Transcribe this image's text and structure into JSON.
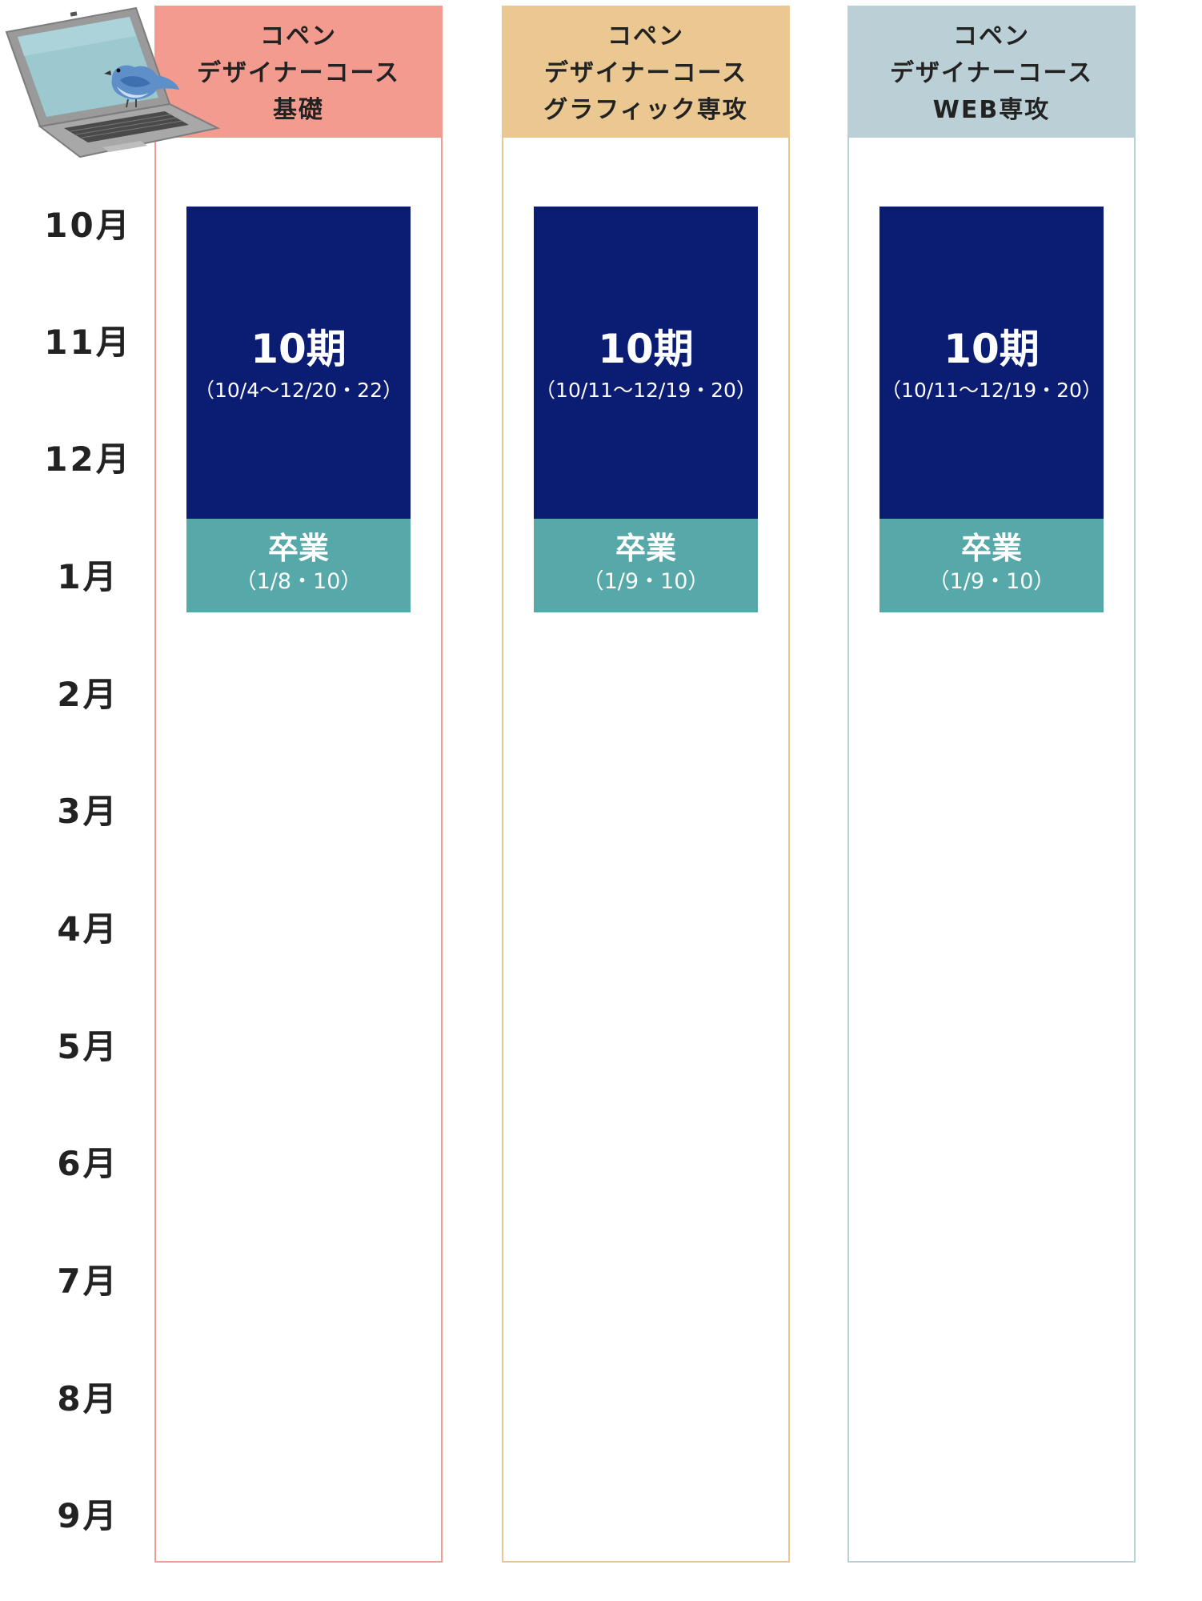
{
  "months": [
    "10月",
    "11月",
    "12月",
    "1月",
    "2月",
    "3月",
    "4月",
    "5月",
    "6月",
    "7月",
    "8月",
    "9月"
  ],
  "courses": [
    {
      "header": [
        "コペン",
        "デザイナーコース",
        "基礎"
      ],
      "header_color": "#f49b8f",
      "border_color": "#f49b8f",
      "term": {
        "title": "10期",
        "dates": "（10/4〜12/20・22）"
      },
      "graduation": {
        "title": "卒業",
        "dates": "（1/8・10）"
      }
    },
    {
      "header": [
        "コペン",
        "デザイナーコース",
        "グラフィック専攻"
      ],
      "header_color": "#ebc891",
      "border_color": "#ebc891",
      "term": {
        "title": "10期",
        "dates": "（10/11〜12/19・20）"
      },
      "graduation": {
        "title": "卒業",
        "dates": "（1/9・10）"
      }
    },
    {
      "header": [
        "コペン",
        "デザイナーコース",
        "WEB専攻"
      ],
      "header_color": "#bad0d6",
      "border_color": "#bad0d6",
      "term": {
        "title": "10期",
        "dates": "（10/11〜12/19・20）"
      },
      "graduation": {
        "title": "卒業",
        "dates": "（1/9・10）"
      }
    }
  ],
  "colors": {
    "term_bg": "#0b1d72",
    "graduation_bg": "#56a8a9"
  },
  "decoration": {
    "icon": "laptop-with-bird-icon"
  }
}
